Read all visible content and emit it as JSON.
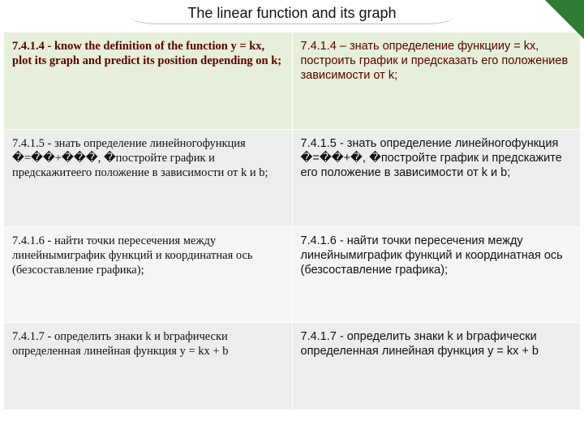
{
  "title": "The linear function and its graph",
  "rows": [
    {
      "left": "7.4.1.4 - know the definition of the function y = kx, plot its graph and predict its position depending on k;",
      "right": "7.4.1.4 – знать определение функцииy = kx, построить график и предсказать его положениев зависимости от k;"
    },
    {
      "left": "7.4.1.5 - знать определение линейногофункция �=��+���, �постройте график и предскажитеего положение в зависимости от k и b;",
      "right": "7.4.1.5 - знать определение линейногофункция �=��+�, �постройте график и предскажите его положение в зависимости от k и b;"
    },
    {
      "left": "7.4.1.6 - найти точки пересечения между линейнымиграфик функций и координатная ось (безсоставление графика);",
      "right": "7.4.1.6 - найти точки пересечения между линейнымиграфик функций и координатная ось (безсоставление графика);"
    },
    {
      "left": "7.4.1.7 - определить знаки k и bграфически определенная линейная функция y = kx + b",
      "right": "7.4.1.7 - определить знаки k и bграфически определенная линейная функция y = kx + b"
    }
  ],
  "colors": {
    "accent_green": "#2e7d32",
    "header_row_bg": "#e5efda",
    "alt_row_bg": "#ededed",
    "row_bg": "#f5f5f5",
    "header_text": "#5c0000"
  }
}
